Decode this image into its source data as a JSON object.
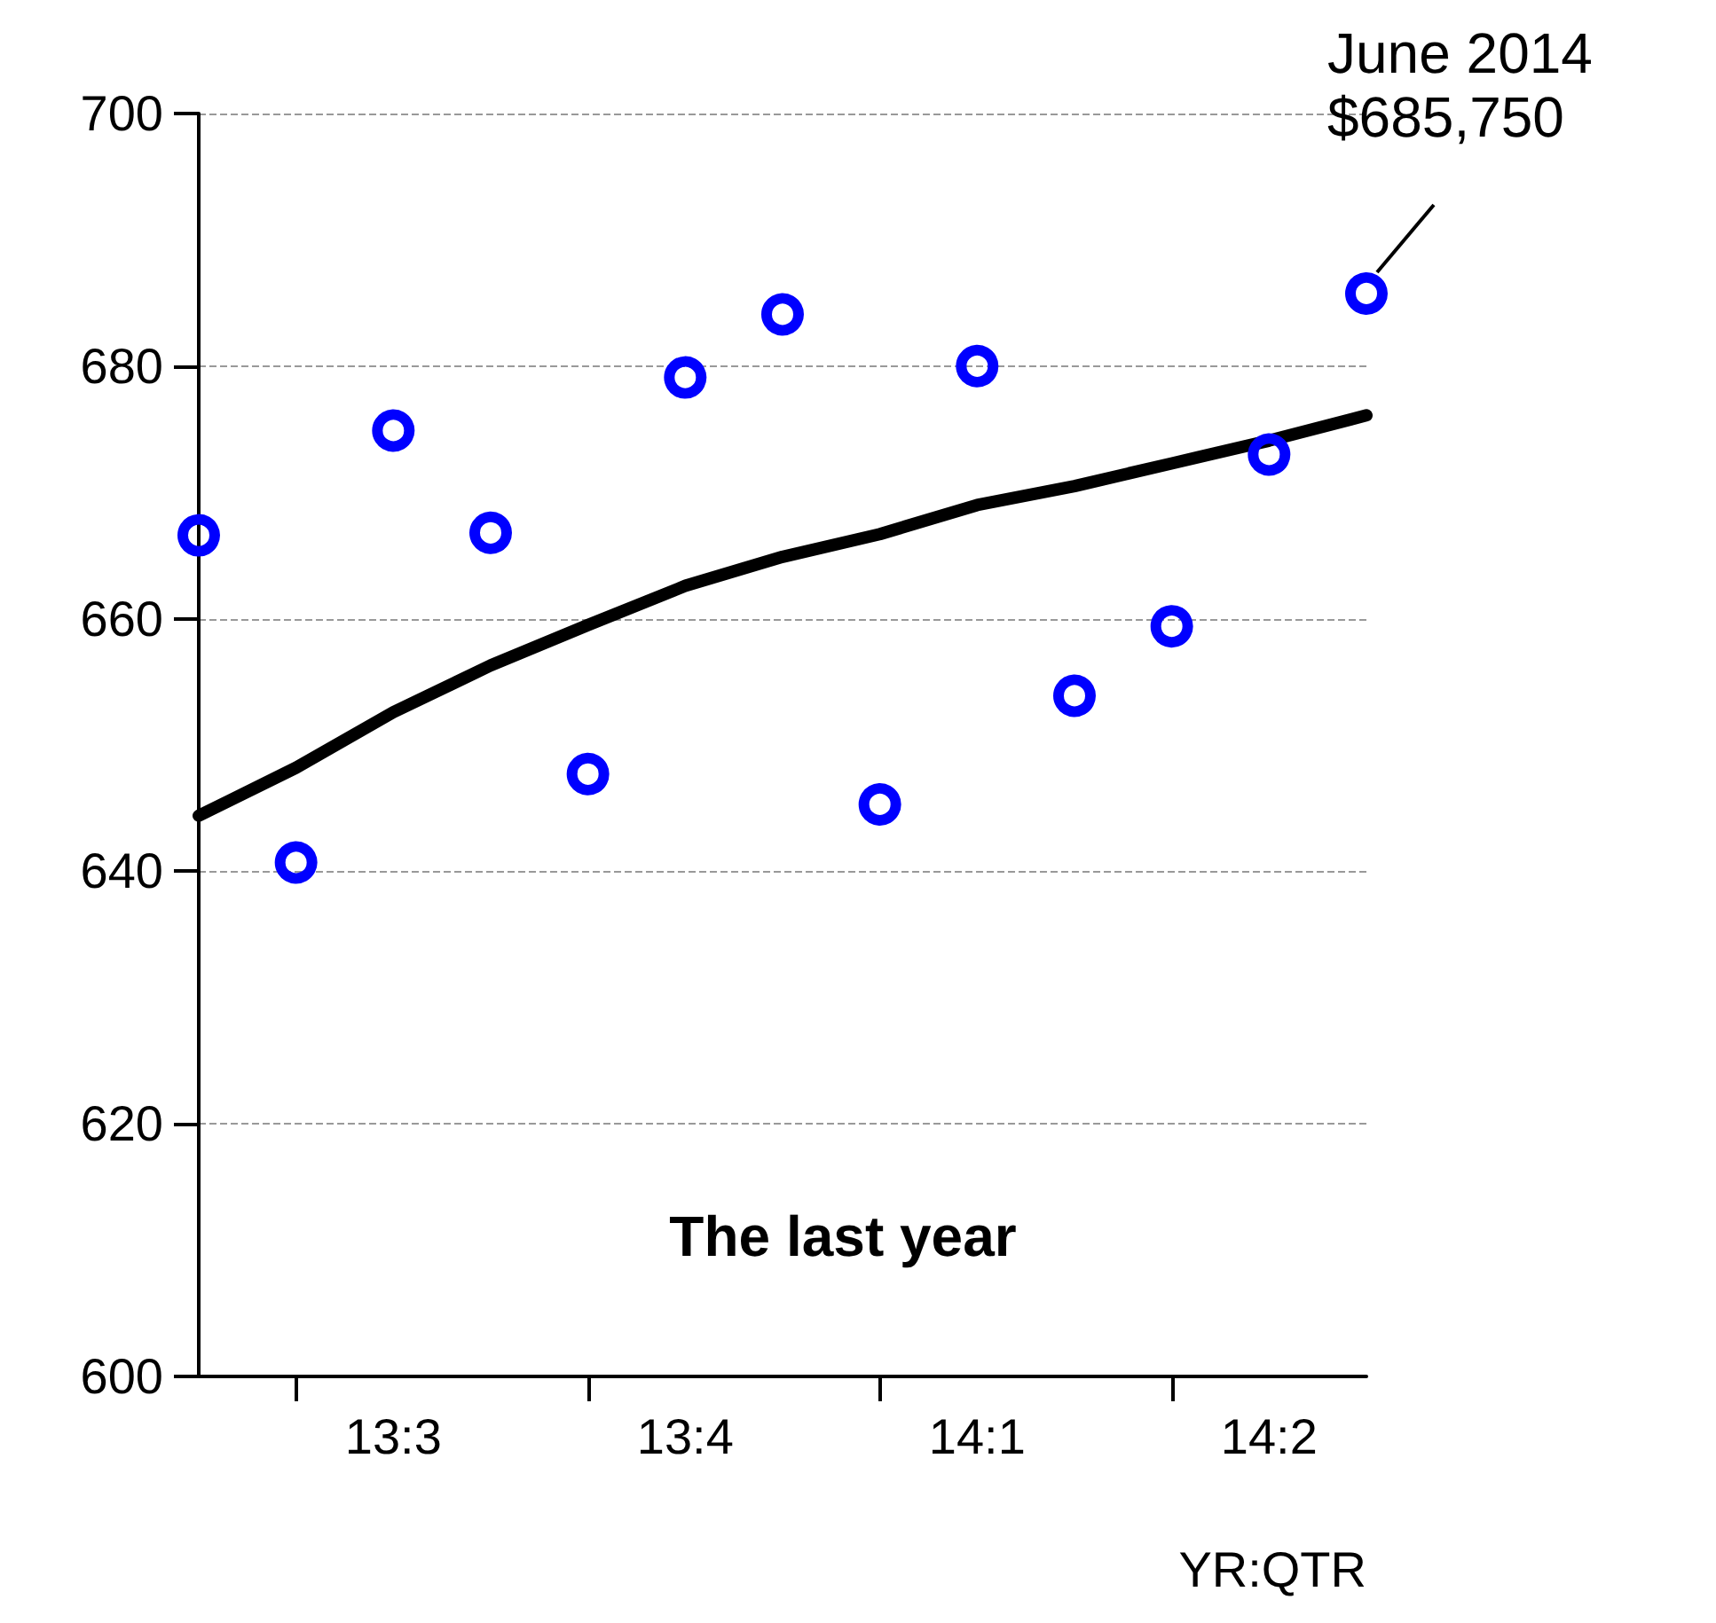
{
  "chart_data": {
    "type": "scatter",
    "title": "The last year",
    "xlabel": "YR:QTR",
    "categories": [
      null,
      null,
      "13:3",
      null,
      null,
      "13:4",
      null,
      null,
      "14:1",
      null,
      null,
      "14:2",
      null
    ],
    "series": [
      {
        "color": "#0000ff",
        "marker": "circle",
        "values": [
          666.6,
          640.7,
          674.9,
          666.8,
          647.7,
          679.1,
          684.1,
          645.3,
          680,
          653.9,
          659.4,
          673,
          685.75
        ]
      },
      {
        "type": "line",
        "color": "#000000",
        "marker": "none",
        "line_style": "solid",
        "values": [
          644.4,
          648.2,
          652.6,
          656.3,
          659.5,
          662.6,
          664.9,
          666.7,
          669,
          670.5,
          672.3,
          674.1,
          676.1
        ]
      }
    ],
    "ylim": [
      600,
      700
    ],
    "yticks": [
      600,
      620,
      640,
      660,
      680,
      700
    ],
    "grid": "y",
    "annotations": [
      "June 2014\n$685,750"
    ]
  }
}
